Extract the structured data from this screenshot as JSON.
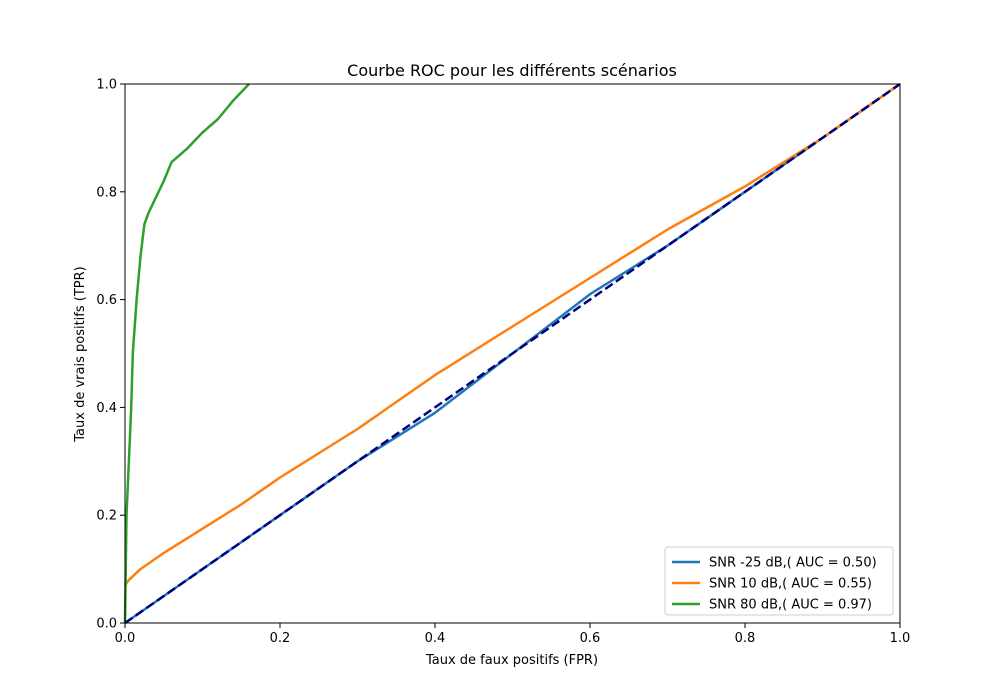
{
  "chart_data": {
    "type": "line",
    "title": "Courbe ROC pour les différents scénarios",
    "xlabel": "Taux de faux positifs (FPR)",
    "ylabel": "Taux de vrais positifs (TPR)",
    "xlim": [
      0,
      1
    ],
    "ylim": [
      0,
      1
    ],
    "xticks": [
      "0.0",
      "0.2",
      "0.4",
      "0.6",
      "0.8",
      "1.0"
    ],
    "yticks": [
      "0.0",
      "0.2",
      "0.4",
      "0.6",
      "0.8",
      "1.0"
    ],
    "grid": false,
    "legend_position": "lower-right",
    "series": [
      {
        "name": "SNR -25 dB,( AUC = 0.50)",
        "color": "#1f77b4",
        "x": [
          0,
          0.05,
          0.1,
          0.2,
          0.3,
          0.4,
          0.5,
          0.6,
          0.7,
          0.8,
          0.9,
          1.0
        ],
        "y": [
          0,
          0.05,
          0.1,
          0.2,
          0.3,
          0.39,
          0.5,
          0.61,
          0.7,
          0.8,
          0.9,
          1.0
        ]
      },
      {
        "name": "SNR 10 dB,( AUC = 0.55)",
        "color": "#ff7f0e",
        "x": [
          0,
          0.005,
          0.02,
          0.05,
          0.1,
          0.15,
          0.2,
          0.3,
          0.4,
          0.5,
          0.6,
          0.7,
          0.8,
          0.9,
          1.0
        ],
        "y": [
          0.07,
          0.08,
          0.1,
          0.13,
          0.175,
          0.22,
          0.27,
          0.36,
          0.46,
          0.55,
          0.64,
          0.73,
          0.81,
          0.9,
          1.0
        ]
      },
      {
        "name": "SNR 80 dB,( AUC = 0.97)",
        "color": "#2ca02c",
        "x": [
          0,
          0.002,
          0.005,
          0.008,
          0.01,
          0.015,
          0.02,
          0.025,
          0.03,
          0.04,
          0.05,
          0.06,
          0.08,
          0.1,
          0.12,
          0.14,
          0.16
        ],
        "y": [
          0,
          0.2,
          0.3,
          0.4,
          0.5,
          0.6,
          0.68,
          0.74,
          0.76,
          0.79,
          0.82,
          0.855,
          0.88,
          0.91,
          0.935,
          0.97,
          1.0
        ]
      }
    ],
    "reference_line": {
      "color": "#000080",
      "dashed": true,
      "x": [
        0,
        1
      ],
      "y": [
        0,
        1
      ]
    }
  }
}
